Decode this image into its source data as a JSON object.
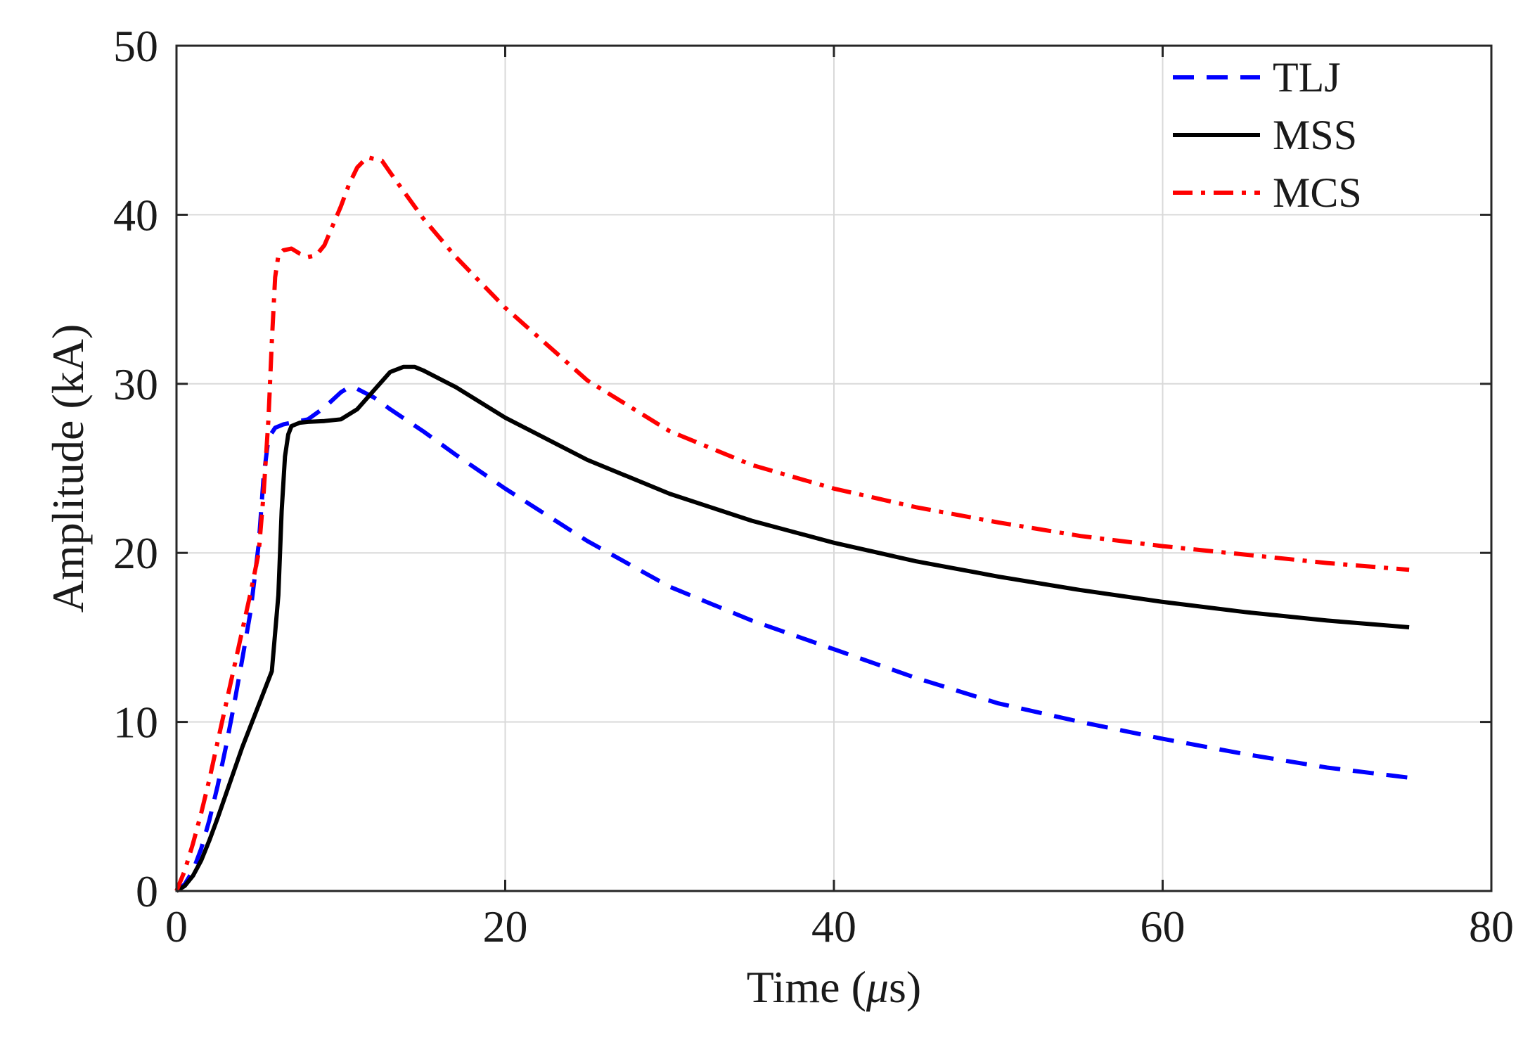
{
  "chart_data": {
    "type": "line",
    "title": "",
    "xlabel": "Time (",
    "xlabel_unit_symbol": "μ",
    "xlabel_suffix": "s)",
    "ylabel": "Amplitude (kA)",
    "xlim": [
      0,
      80
    ],
    "ylim": [
      0,
      50
    ],
    "xticks": [
      0,
      20,
      40,
      60,
      80
    ],
    "yticks": [
      0,
      10,
      20,
      30,
      40,
      50
    ],
    "xtick_labels": [
      "0",
      "20",
      "40",
      "60",
      "80"
    ],
    "ytick_labels": [
      "0",
      "10",
      "20",
      "30",
      "40",
      "50"
    ],
    "grid": true,
    "legend_position": "top-right",
    "series": [
      {
        "name": "TLJ",
        "color": "#0000ff",
        "style": "dashed",
        "x": [
          0,
          0.5,
          1,
          1.5,
          2,
          2.5,
          3,
          3.5,
          4,
          4.5,
          5,
          5.3,
          5.6,
          6,
          6.5,
          7,
          8,
          9,
          10,
          10.5,
          11,
          12,
          13,
          15,
          17,
          20,
          25,
          30,
          35,
          40,
          45,
          50,
          55,
          60,
          65,
          70,
          75
        ],
        "y": [
          0,
          0.4,
          1.2,
          2.5,
          4.2,
          6.2,
          8.5,
          11,
          13.7,
          16.5,
          20.5,
          24.5,
          26.8,
          27.4,
          27.6,
          27.7,
          27.9,
          28.6,
          29.5,
          29.8,
          29.7,
          29.2,
          28.5,
          27.2,
          25.8,
          23.8,
          20.7,
          18.0,
          16.0,
          14.3,
          12.6,
          11.1,
          10.0,
          9.0,
          8.1,
          7.3,
          6.7
        ]
      },
      {
        "name": "MSS",
        "color": "#000000",
        "style": "solid",
        "x": [
          0,
          0.5,
          1,
          1.5,
          2,
          2.5,
          3,
          4,
          5,
          5.8,
          6.2,
          6.4,
          6.6,
          6.8,
          7,
          7.5,
          8,
          9,
          10,
          11,
          12,
          13,
          13.8,
          14.5,
          15,
          17,
          20,
          25,
          30,
          35,
          40,
          45,
          50,
          55,
          60,
          65,
          70,
          75
        ],
        "y": [
          0,
          0.3,
          0.9,
          1.8,
          3.0,
          4.3,
          5.7,
          8.5,
          11.0,
          13.0,
          17.5,
          22.5,
          25.7,
          27.0,
          27.5,
          27.7,
          27.75,
          27.8,
          27.9,
          28.5,
          29.6,
          30.7,
          31.0,
          31.0,
          30.8,
          29.8,
          28.0,
          25.5,
          23.5,
          21.9,
          20.6,
          19.5,
          18.6,
          17.8,
          17.1,
          16.5,
          16.0,
          15.6
        ]
      },
      {
        "name": "MCS",
        "color": "#ff0000",
        "style": "dashdot",
        "x": [
          0,
          0.5,
          1,
          1.5,
          2,
          2.5,
          3,
          3.5,
          4,
          4.5,
          5,
          5.3,
          5.6,
          5.8,
          6,
          6.2,
          6.5,
          7,
          7.5,
          8,
          8.5,
          9,
          10,
          10.5,
          11,
          11.6,
          12.5,
          13,
          15,
          17,
          20,
          25,
          30,
          35,
          40,
          45,
          50,
          55,
          60,
          65,
          70,
          75
        ],
        "y": [
          0,
          1.2,
          2.8,
          4.6,
          6.6,
          8.8,
          11.0,
          13.2,
          15.4,
          17.6,
          20.0,
          23.5,
          28.0,
          32.5,
          36.3,
          37.6,
          37.9,
          38.0,
          37.7,
          37.5,
          37.6,
          38.2,
          40.5,
          41.8,
          42.8,
          43.4,
          43.2,
          42.5,
          39.8,
          37.5,
          34.5,
          30.2,
          27.2,
          25.2,
          23.8,
          22.7,
          21.8,
          21.0,
          20.4,
          19.9,
          19.4,
          19.0
        ]
      }
    ]
  }
}
